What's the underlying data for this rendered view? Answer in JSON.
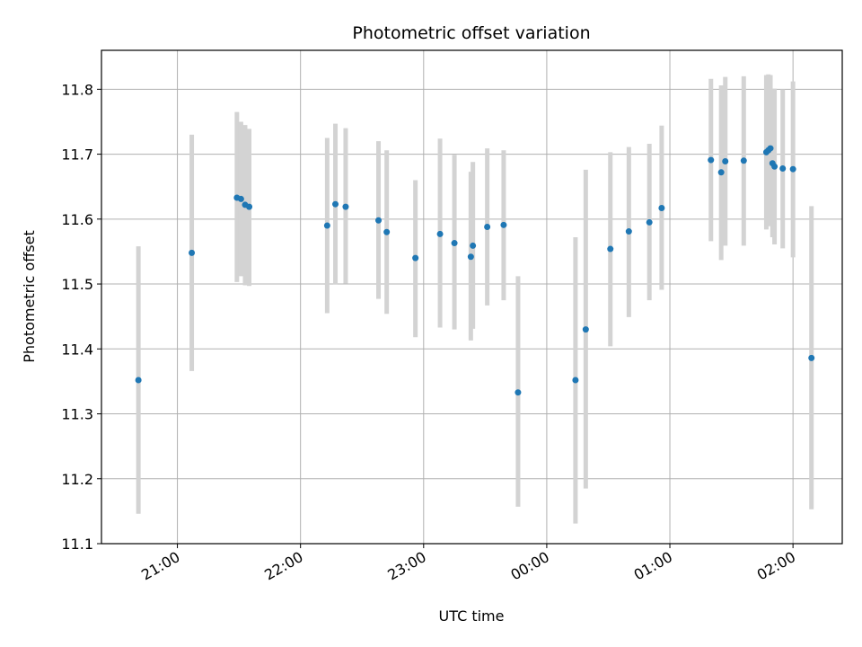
{
  "chart_data": {
    "type": "scatter",
    "title": "Photometric offset variation",
    "xlabel": "UTC time",
    "ylabel": "Photometric offset",
    "x_axis_type": "time",
    "x_ticks": [
      "21:00",
      "22:00",
      "23:00",
      "00:00",
      "01:00",
      "02:00"
    ],
    "x_range": [
      "20:23",
      "02:24"
    ],
    "ylim": [
      11.1,
      11.86
    ],
    "y_ticks": [
      11.1,
      11.2,
      11.3,
      11.4,
      11.5,
      11.6,
      11.7,
      11.8
    ],
    "grid": true,
    "colors": {
      "marker": "#1f77b4",
      "errorbar": "#d3d3d3",
      "grid": "#b0b0b0"
    },
    "points": [
      {
        "x": "20:41",
        "y": 11.352,
        "lo": 11.146,
        "hi": 11.558
      },
      {
        "x": "21:07",
        "y": 11.548,
        "lo": 11.366,
        "hi": 11.73
      },
      {
        "x": "21:29",
        "y": 11.633,
        "lo": 11.503,
        "hi": 11.765
      },
      {
        "x": "21:31",
        "y": 11.631,
        "lo": 11.512,
        "hi": 11.75
      },
      {
        "x": "21:33",
        "y": 11.622,
        "lo": 11.498,
        "hi": 11.745
      },
      {
        "x": "21:35",
        "y": 11.619,
        "lo": 11.497,
        "hi": 11.739
      },
      {
        "x": "22:13",
        "y": 11.59,
        "lo": 11.455,
        "hi": 11.725
      },
      {
        "x": "22:17",
        "y": 11.623,
        "lo": 11.499,
        "hi": 11.747
      },
      {
        "x": "22:22",
        "y": 11.619,
        "lo": 11.501,
        "hi": 11.74
      },
      {
        "x": "22:38",
        "y": 11.598,
        "lo": 11.477,
        "hi": 11.72
      },
      {
        "x": "22:42",
        "y": 11.58,
        "lo": 11.454,
        "hi": 11.706
      },
      {
        "x": "22:56",
        "y": 11.54,
        "lo": 11.418,
        "hi": 11.66
      },
      {
        "x": "23:08",
        "y": 11.577,
        "lo": 11.433,
        "hi": 11.724
      },
      {
        "x": "23:15",
        "y": 11.563,
        "lo": 11.43,
        "hi": 11.699
      },
      {
        "x": "23:23",
        "y": 11.542,
        "lo": 11.413,
        "hi": 11.673
      },
      {
        "x": "23:24",
        "y": 11.559,
        "lo": 11.431,
        "hi": 11.688
      },
      {
        "x": "23:31",
        "y": 11.588,
        "lo": 11.467,
        "hi": 11.709
      },
      {
        "x": "23:39",
        "y": 11.591,
        "lo": 11.475,
        "hi": 11.706
      },
      {
        "x": "23:46",
        "y": 11.333,
        "lo": 11.157,
        "hi": 11.512
      },
      {
        "x": "00:14",
        "y": 11.352,
        "lo": 11.131,
        "hi": 11.572
      },
      {
        "x": "00:19",
        "y": 11.43,
        "lo": 11.185,
        "hi": 11.676
      },
      {
        "x": "00:31",
        "y": 11.554,
        "lo": 11.404,
        "hi": 11.703
      },
      {
        "x": "00:40",
        "y": 11.581,
        "lo": 11.449,
        "hi": 11.711
      },
      {
        "x": "00:50",
        "y": 11.595,
        "lo": 11.475,
        "hi": 11.716
      },
      {
        "x": "00:56",
        "y": 11.617,
        "lo": 11.491,
        "hi": 11.744
      },
      {
        "x": "01:20",
        "y": 11.691,
        "lo": 11.566,
        "hi": 11.816
      },
      {
        "x": "01:25",
        "y": 11.672,
        "lo": 11.537,
        "hi": 11.806
      },
      {
        "x": "01:27",
        "y": 11.689,
        "lo": 11.559,
        "hi": 11.819
      },
      {
        "x": "01:36",
        "y": 11.69,
        "lo": 11.559,
        "hi": 11.82
      },
      {
        "x": "01:47",
        "y": 11.703,
        "lo": 11.584,
        "hi": 11.822
      },
      {
        "x": "01:48",
        "y": 11.706,
        "lo": 11.589,
        "hi": 11.823
      },
      {
        "x": "01:49",
        "y": 11.709,
        "lo": 11.597,
        "hi": 11.822
      },
      {
        "x": "01:50",
        "y": 11.686,
        "lo": 11.572,
        "hi": 11.8
      },
      {
        "x": "01:51",
        "y": 11.681,
        "lo": 11.561,
        "hi": 11.801
      },
      {
        "x": "01:55",
        "y": 11.678,
        "lo": 11.555,
        "hi": 11.8
      },
      {
        "x": "02:00",
        "y": 11.677,
        "lo": 11.541,
        "hi": 11.812
      },
      {
        "x": "02:09",
        "y": 11.386,
        "lo": 11.153,
        "hi": 11.62
      }
    ]
  }
}
